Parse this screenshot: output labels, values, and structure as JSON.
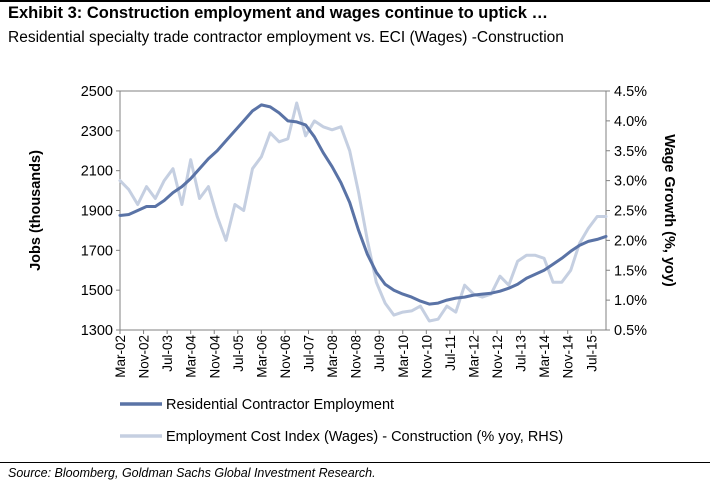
{
  "header": {
    "title": "Exhibit 3: Construction employment and wages continue to uptick …",
    "subtitle": "Residential specialty trade contractor employment vs. ECI (Wages) -Construction"
  },
  "footer": {
    "source": "Source: Bloomberg, Goldman Sachs Global Investment Research."
  },
  "chart_data": {
    "type": "line",
    "title": "",
    "xlabel": "",
    "ylabel": "Jobs (thousands)",
    "y2label": "Wage Growth (%, yoy)",
    "ylim": [
      1300,
      2500
    ],
    "y2lim": [
      0.5,
      4.5
    ],
    "yticks": [
      "1300",
      "1500",
      "1700",
      "1900",
      "2100",
      "2300",
      "2500"
    ],
    "y2ticks": [
      "0.5%",
      "1.0%",
      "1.5%",
      "2.0%",
      "2.5%",
      "3.0%",
      "3.5%",
      "4.0%",
      "4.5%"
    ],
    "x_tick_labels": [
      "Mar-02",
      "Nov-02",
      "Jul-03",
      "Mar-04",
      "Nov-04",
      "Jul-05",
      "Mar-06",
      "Nov-06",
      "Jul-07",
      "Mar-08",
      "Nov-08",
      "Jul-09",
      "Mar-10",
      "Nov-10",
      "Jul-11",
      "Mar-12",
      "Nov-12",
      "Jul-13",
      "Mar-14",
      "Nov-14",
      "Jul-15"
    ],
    "xlim": [
      "2002-03",
      "2015-12"
    ],
    "grid": false,
    "legend_position": "bottom",
    "colors": {
      "employment": "#5a73a6",
      "eci": "#c5cfe1"
    },
    "series": [
      {
        "name": "Residential Contractor Employment",
        "axis": "left",
        "x": [
          "2002-03",
          "2002-06",
          "2002-09",
          "2002-12",
          "2003-03",
          "2003-06",
          "2003-09",
          "2003-12",
          "2004-03",
          "2004-06",
          "2004-09",
          "2004-12",
          "2005-03",
          "2005-06",
          "2005-09",
          "2005-12",
          "2006-03",
          "2006-06",
          "2006-09",
          "2006-12",
          "2007-03",
          "2007-06",
          "2007-09",
          "2007-12",
          "2008-03",
          "2008-06",
          "2008-09",
          "2008-12",
          "2009-03",
          "2009-06",
          "2009-09",
          "2009-12",
          "2010-03",
          "2010-06",
          "2010-09",
          "2010-12",
          "2011-03",
          "2011-06",
          "2011-09",
          "2011-12",
          "2012-03",
          "2012-06",
          "2012-09",
          "2012-12",
          "2013-03",
          "2013-06",
          "2013-09",
          "2013-12",
          "2014-03",
          "2014-06",
          "2014-09",
          "2014-12",
          "2015-03",
          "2015-06",
          "2015-09",
          "2015-12"
        ],
        "values": [
          1875,
          1880,
          1900,
          1920,
          1920,
          1950,
          1990,
          2020,
          2060,
          2110,
          2160,
          2200,
          2250,
          2300,
          2350,
          2400,
          2430,
          2420,
          2390,
          2350,
          2345,
          2330,
          2270,
          2190,
          2120,
          2040,
          1940,
          1800,
          1680,
          1590,
          1530,
          1500,
          1480,
          1465,
          1445,
          1430,
          1435,
          1450,
          1460,
          1465,
          1475,
          1480,
          1485,
          1495,
          1510,
          1530,
          1560,
          1580,
          1600,
          1630,
          1660,
          1695,
          1725,
          1745,
          1755,
          1770
        ]
      },
      {
        "name": "Employment Cost Index (Wages) - Construction (% yoy, RHS)",
        "axis": "right",
        "x": [
          "2002-03",
          "2002-06",
          "2002-09",
          "2002-12",
          "2003-03",
          "2003-06",
          "2003-09",
          "2003-12",
          "2004-03",
          "2004-06",
          "2004-09",
          "2004-12",
          "2005-03",
          "2005-06",
          "2005-09",
          "2005-12",
          "2006-03",
          "2006-06",
          "2006-09",
          "2006-12",
          "2007-03",
          "2007-06",
          "2007-09",
          "2007-12",
          "2008-03",
          "2008-06",
          "2008-09",
          "2008-12",
          "2009-03",
          "2009-06",
          "2009-09",
          "2009-12",
          "2010-03",
          "2010-06",
          "2010-09",
          "2010-12",
          "2011-03",
          "2011-06",
          "2011-09",
          "2011-12",
          "2012-03",
          "2012-06",
          "2012-09",
          "2012-12",
          "2013-03",
          "2013-06",
          "2013-09",
          "2013-12",
          "2014-03",
          "2014-06",
          "2014-09",
          "2014-12",
          "2015-03",
          "2015-06",
          "2015-09",
          "2015-12"
        ],
        "values": [
          3.0,
          2.85,
          2.6,
          2.9,
          2.7,
          3.0,
          3.2,
          2.6,
          3.35,
          2.7,
          2.9,
          2.4,
          2.0,
          2.6,
          2.5,
          3.2,
          3.4,
          3.8,
          3.65,
          3.7,
          4.3,
          3.75,
          4.0,
          3.9,
          3.85,
          3.9,
          3.5,
          2.8,
          2.0,
          1.3,
          0.95,
          0.75,
          0.8,
          0.82,
          0.9,
          0.65,
          0.68,
          0.9,
          0.8,
          1.25,
          1.1,
          1.05,
          1.1,
          1.4,
          1.25,
          1.65,
          1.75,
          1.75,
          1.7,
          1.3,
          1.3,
          1.5,
          1.95,
          2.2,
          2.4,
          2.4
        ]
      }
    ]
  }
}
